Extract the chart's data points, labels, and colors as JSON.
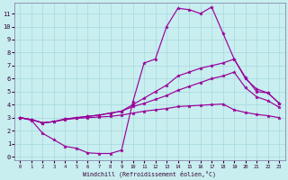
{
  "background_color": "#c8eef0",
  "grid_color": "#a8d8dc",
  "line_color": "#990099",
  "xlim": [
    -0.5,
    23.5
  ],
  "ylim": [
    -0.3,
    11.8
  ],
  "xticks": [
    0,
    1,
    2,
    3,
    4,
    5,
    6,
    7,
    8,
    9,
    10,
    11,
    12,
    13,
    14,
    15,
    16,
    17,
    18,
    19,
    20,
    21,
    22,
    23
  ],
  "yticks": [
    0,
    1,
    2,
    3,
    4,
    5,
    6,
    7,
    8,
    9,
    10,
    11
  ],
  "xlabel": "Windchill (Refroidissement éolien,°C)",
  "line1_x": [
    0,
    1,
    2,
    3,
    4,
    5,
    6,
    7,
    8,
    9,
    10,
    11,
    12,
    13,
    14,
    15,
    16,
    17,
    18,
    19,
    20,
    21,
    22,
    23
  ],
  "line1_y": [
    3.0,
    2.8,
    1.8,
    1.3,
    0.8,
    0.65,
    0.3,
    0.25,
    0.25,
    0.5,
    4.2,
    7.2,
    7.5,
    10.0,
    11.4,
    11.3,
    11.0,
    11.5,
    9.5,
    7.5,
    6.1,
    5.0,
    4.9,
    4.1
  ],
  "line2_x": [
    0,
    1,
    2,
    3,
    4,
    5,
    6,
    7,
    8,
    9,
    10,
    11,
    12,
    13,
    14,
    15,
    16,
    17,
    18,
    19,
    20,
    21,
    22,
    23
  ],
  "line2_y": [
    3.0,
    2.85,
    2.6,
    2.7,
    2.9,
    3.0,
    3.1,
    3.2,
    3.35,
    3.5,
    4.0,
    4.5,
    5.0,
    5.5,
    6.2,
    6.5,
    6.8,
    7.0,
    7.2,
    7.5,
    6.0,
    5.2,
    4.9,
    4.1
  ],
  "line3_x": [
    0,
    1,
    2,
    3,
    4,
    5,
    6,
    7,
    8,
    9,
    10,
    11,
    12,
    13,
    14,
    15,
    16,
    17,
    18,
    19,
    20,
    21,
    22,
    23
  ],
  "line3_y": [
    3.0,
    2.85,
    2.6,
    2.7,
    2.9,
    3.0,
    3.1,
    3.2,
    3.35,
    3.5,
    3.85,
    4.1,
    4.4,
    4.7,
    5.1,
    5.4,
    5.7,
    6.0,
    6.2,
    6.5,
    5.3,
    4.6,
    4.3,
    3.8
  ],
  "line4_x": [
    0,
    1,
    2,
    3,
    4,
    5,
    6,
    7,
    8,
    9,
    10,
    11,
    12,
    13,
    14,
    15,
    16,
    17,
    18,
    19,
    20,
    21,
    22,
    23
  ],
  "line4_y": [
    3.0,
    2.85,
    2.6,
    2.7,
    2.85,
    2.95,
    3.0,
    3.05,
    3.1,
    3.2,
    3.35,
    3.5,
    3.6,
    3.7,
    3.85,
    3.9,
    3.95,
    4.0,
    4.05,
    3.6,
    3.4,
    3.25,
    3.15,
    3.0
  ]
}
